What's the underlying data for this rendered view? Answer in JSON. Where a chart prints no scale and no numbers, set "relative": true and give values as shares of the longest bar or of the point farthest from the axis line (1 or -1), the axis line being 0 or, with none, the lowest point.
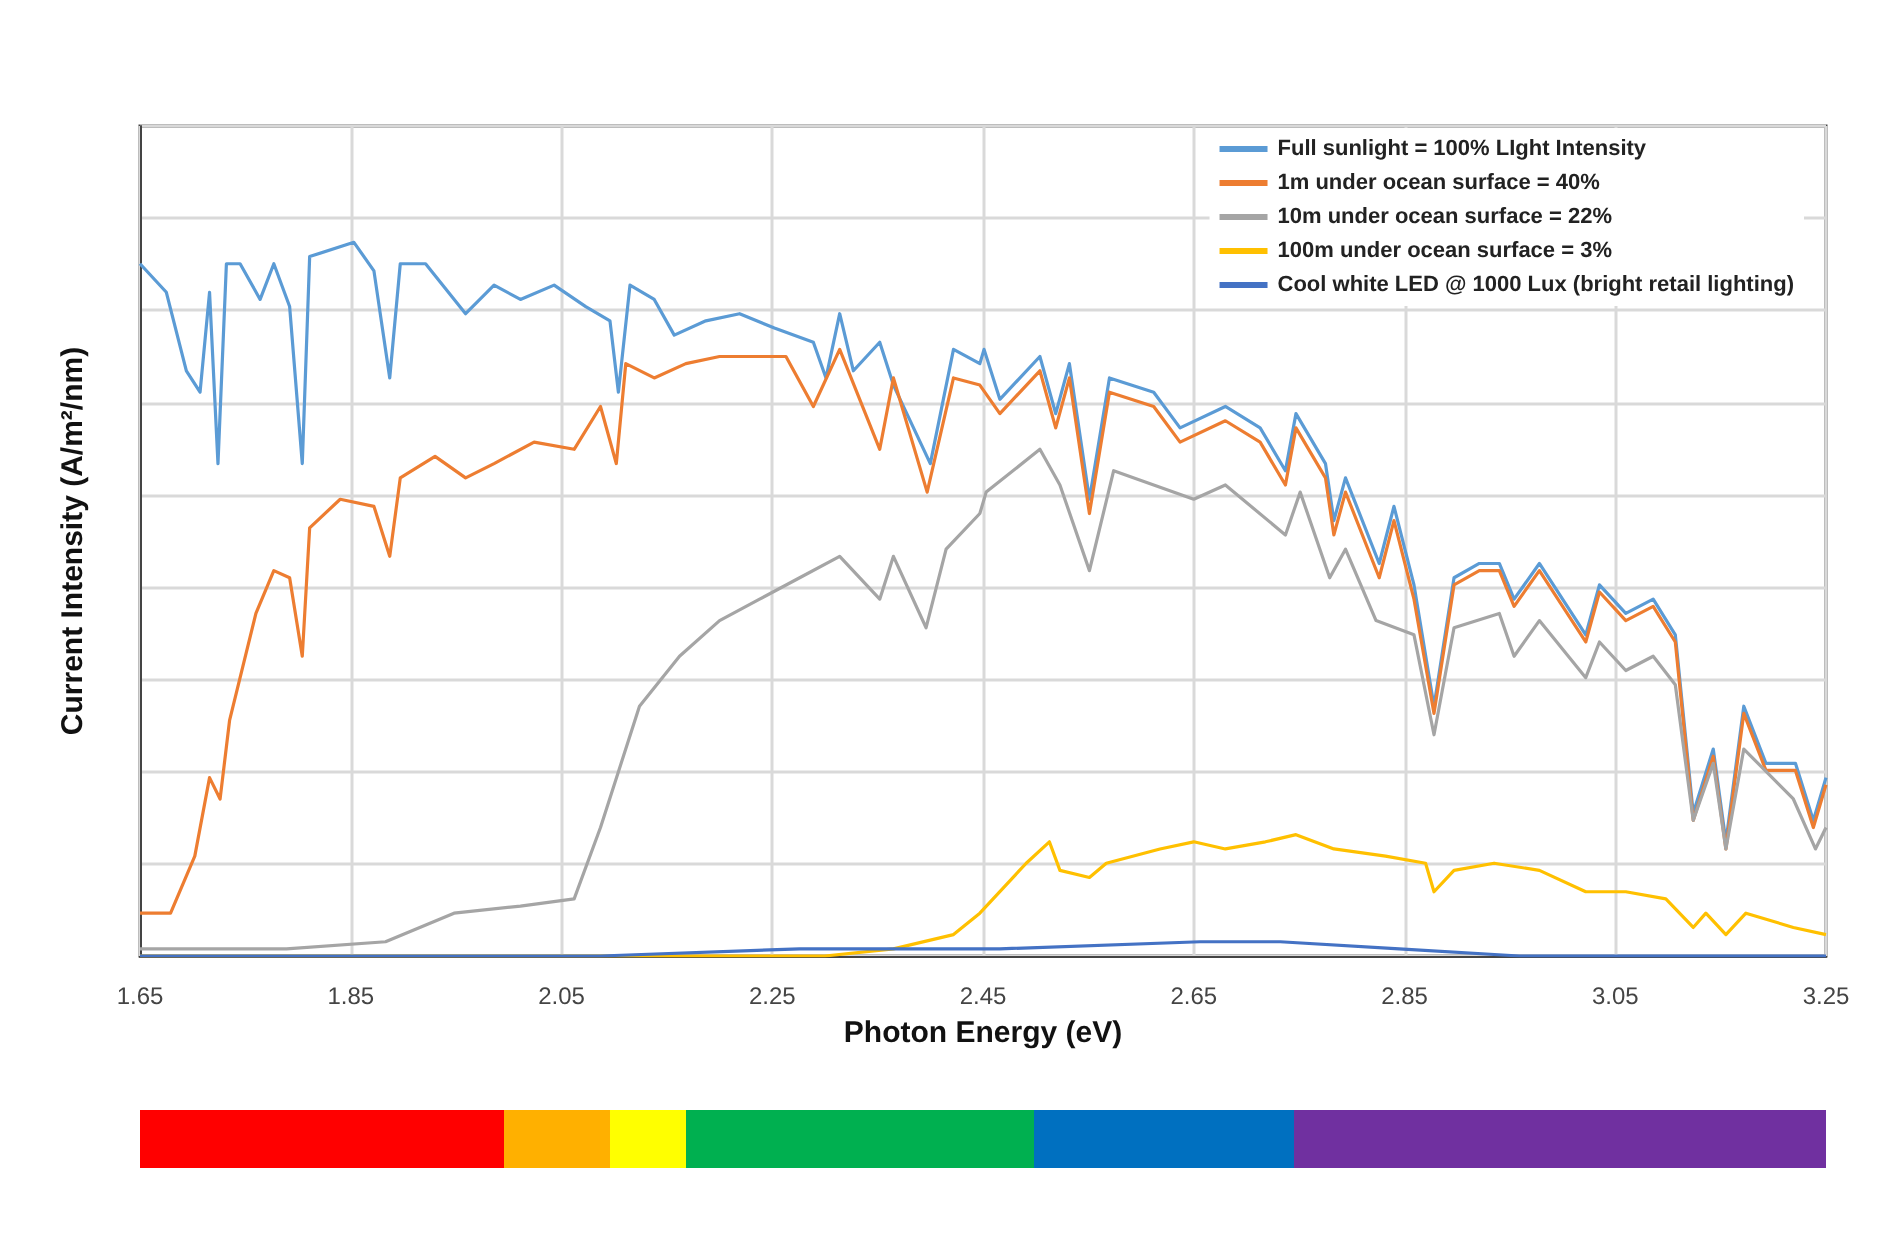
{
  "chart_data": {
    "type": "line",
    "relative": true,
    "xlabel": "Photon Energy (eV)",
    "ylabel": "Current Intensity (A/m²/nm)",
    "xlim": [
      1.65,
      3.25
    ],
    "xticks": [
      1.65,
      1.85,
      2.05,
      2.25,
      2.45,
      2.65,
      2.85,
      3.05,
      3.25
    ],
    "grid": true,
    "legend": "top right",
    "marker": "none",
    "line_style": "solid",
    "series": [
      {
        "name": "Full sunlight = 100% LIght Intensity",
        "color": "#5b9bd5",
        "x": [
          1.65,
          1.675,
          1.694,
          1.707,
          1.716,
          1.724,
          1.732,
          1.745,
          1.764,
          1.777,
          1.792,
          1.804,
          1.811,
          1.853,
          1.872,
          1.887,
          1.897,
          1.921,
          1.959,
          1.986,
          2.011,
          2.043,
          2.073,
          2.096,
          2.104,
          2.115,
          2.138,
          2.157,
          2.187,
          2.219,
          2.252,
          2.289,
          2.301,
          2.314,
          2.327,
          2.352,
          2.365,
          2.4,
          2.422,
          2.447,
          2.451,
          2.466,
          2.504,
          2.519,
          2.532,
          2.551,
          2.57,
          2.612,
          2.637,
          2.68,
          2.713,
          2.737,
          2.747,
          2.775,
          2.783,
          2.794,
          2.826,
          2.84,
          2.859,
          2.878,
          2.897,
          2.921,
          2.94,
          2.954,
          2.978,
          3.022,
          3.035,
          3.06,
          3.086,
          3.107,
          3.124,
          3.143,
          3.155,
          3.172,
          3.193,
          3.221,
          3.238,
          3.25
        ],
        "values": [
          0.97,
          0.93,
          0.82,
          0.79,
          0.93,
          0.69,
          0.97,
          0.97,
          0.92,
          0.97,
          0.91,
          0.69,
          0.98,
          1,
          0.96,
          0.81,
          0.97,
          0.97,
          0.9,
          0.94,
          0.92,
          0.94,
          0.91,
          0.89,
          0.79,
          0.94,
          0.92,
          0.87,
          0.89,
          0.9,
          0.88,
          0.86,
          0.81,
          0.9,
          0.82,
          0.86,
          0.8,
          0.69,
          0.85,
          0.83,
          0.85,
          0.78,
          0.84,
          0.76,
          0.83,
          0.64,
          0.81,
          0.79,
          0.74,
          0.77,
          0.74,
          0.68,
          0.76,
          0.69,
          0.61,
          0.67,
          0.55,
          0.63,
          0.52,
          0.35,
          0.53,
          0.55,
          0.55,
          0.5,
          0.55,
          0.45,
          0.52,
          0.48,
          0.5,
          0.45,
          0.2,
          0.29,
          0.16,
          0.35,
          0.27,
          0.27,
          0.19,
          0.25
        ]
      },
      {
        "name": "1m under ocean surface = 40%",
        "color": "#ed7d31",
        "x": [
          1.65,
          1.679,
          1.702,
          1.716,
          1.726,
          1.735,
          1.76,
          1.777,
          1.792,
          1.804,
          1.811,
          1.84,
          1.872,
          1.887,
          1.897,
          1.93,
          1.959,
          1.986,
          2.024,
          2.062,
          2.087,
          2.102,
          2.111,
          2.138,
          2.168,
          2.2,
          2.263,
          2.289,
          2.314,
          2.352,
          2.365,
          2.397,
          2.422,
          2.447,
          2.466,
          2.504,
          2.519,
          2.532,
          2.551,
          2.57,
          2.612,
          2.637,
          2.68,
          2.713,
          2.737,
          2.747,
          2.775,
          2.783,
          2.794,
          2.826,
          2.84,
          2.859,
          2.878,
          2.897,
          2.921,
          2.94,
          2.954,
          2.978,
          3.022,
          3.035,
          3.06,
          3.086,
          3.107,
          3.124,
          3.143,
          3.155,
          3.172,
          3.193,
          3.221,
          3.238,
          3.25
        ],
        "values": [
          0.06,
          0.06,
          0.14,
          0.25,
          0.22,
          0.33,
          0.48,
          0.54,
          0.53,
          0.42,
          0.6,
          0.64,
          0.63,
          0.56,
          0.67,
          0.7,
          0.67,
          0.69,
          0.72,
          0.71,
          0.77,
          0.69,
          0.83,
          0.81,
          0.83,
          0.84,
          0.84,
          0.77,
          0.85,
          0.71,
          0.81,
          0.65,
          0.81,
          0.8,
          0.76,
          0.82,
          0.74,
          0.81,
          0.62,
          0.79,
          0.77,
          0.72,
          0.75,
          0.72,
          0.66,
          0.74,
          0.67,
          0.59,
          0.65,
          0.53,
          0.61,
          0.5,
          0.34,
          0.52,
          0.54,
          0.54,
          0.49,
          0.54,
          0.44,
          0.51,
          0.47,
          0.49,
          0.44,
          0.19,
          0.28,
          0.15,
          0.34,
          0.26,
          0.26,
          0.18,
          0.24
        ]
      },
      {
        "name": "10m under ocean surface = 22%",
        "color": "#a5a5a5",
        "x": [
          1.65,
          1.789,
          1.883,
          1.948,
          2.011,
          2.062,
          2.087,
          2.124,
          2.162,
          2.2,
          2.238,
          2.276,
          2.314,
          2.352,
          2.365,
          2.396,
          2.415,
          2.447,
          2.453,
          2.504,
          2.523,
          2.551,
          2.574,
          2.612,
          2.65,
          2.68,
          2.737,
          2.751,
          2.779,
          2.794,
          2.823,
          2.859,
          2.878,
          2.897,
          2.94,
          2.954,
          2.978,
          3.022,
          3.035,
          3.06,
          3.086,
          3.107,
          3.124,
          3.143,
          3.155,
          3.172,
          3.219,
          3.24,
          3.25
        ],
        "values": [
          0.01,
          0.01,
          0.02,
          0.06,
          0.07,
          0.08,
          0.18,
          0.35,
          0.42,
          0.47,
          0.5,
          0.53,
          0.56,
          0.5,
          0.56,
          0.46,
          0.57,
          0.62,
          0.65,
          0.71,
          0.66,
          0.54,
          0.68,
          0.66,
          0.64,
          0.66,
          0.59,
          0.65,
          0.53,
          0.57,
          0.47,
          0.45,
          0.31,
          0.46,
          0.48,
          0.42,
          0.47,
          0.39,
          0.44,
          0.4,
          0.42,
          0.38,
          0.19,
          0.27,
          0.15,
          0.29,
          0.22,
          0.15,
          0.18
        ]
      },
      {
        "name": "100m under ocean surface = 3%",
        "color": "#ffc000",
        "x": [
          1.65,
          2.3,
          2.365,
          2.422,
          2.447,
          2.491,
          2.513,
          2.523,
          2.551,
          2.567,
          2.618,
          2.65,
          2.68,
          2.718,
          2.747,
          2.783,
          2.832,
          2.87,
          2.878,
          2.897,
          2.935,
          2.978,
          3.022,
          3.06,
          3.098,
          3.124,
          3.136,
          3.155,
          3.174,
          3.219,
          3.25
        ],
        "values": [
          0,
          0,
          0.01,
          0.03,
          0.06,
          0.13,
          0.16,
          0.12,
          0.11,
          0.13,
          0.15,
          0.16,
          0.15,
          0.16,
          0.17,
          0.15,
          0.14,
          0.13,
          0.09,
          0.12,
          0.13,
          0.12,
          0.09,
          0.09,
          0.08,
          0.04,
          0.06,
          0.03,
          0.06,
          0.04,
          0.03
        ]
      },
      {
        "name": "Cool white LED @ 1000 Lux (bright retail lighting)",
        "color": "#4472c4",
        "x": [
          1.65,
          2.087,
          2.276,
          2.466,
          2.656,
          2.732,
          2.845,
          2.959,
          3.25
        ],
        "values": [
          0,
          0,
          0.01,
          0.01,
          0.02,
          0.02,
          0.01,
          0,
          0
        ]
      }
    ]
  }
}
